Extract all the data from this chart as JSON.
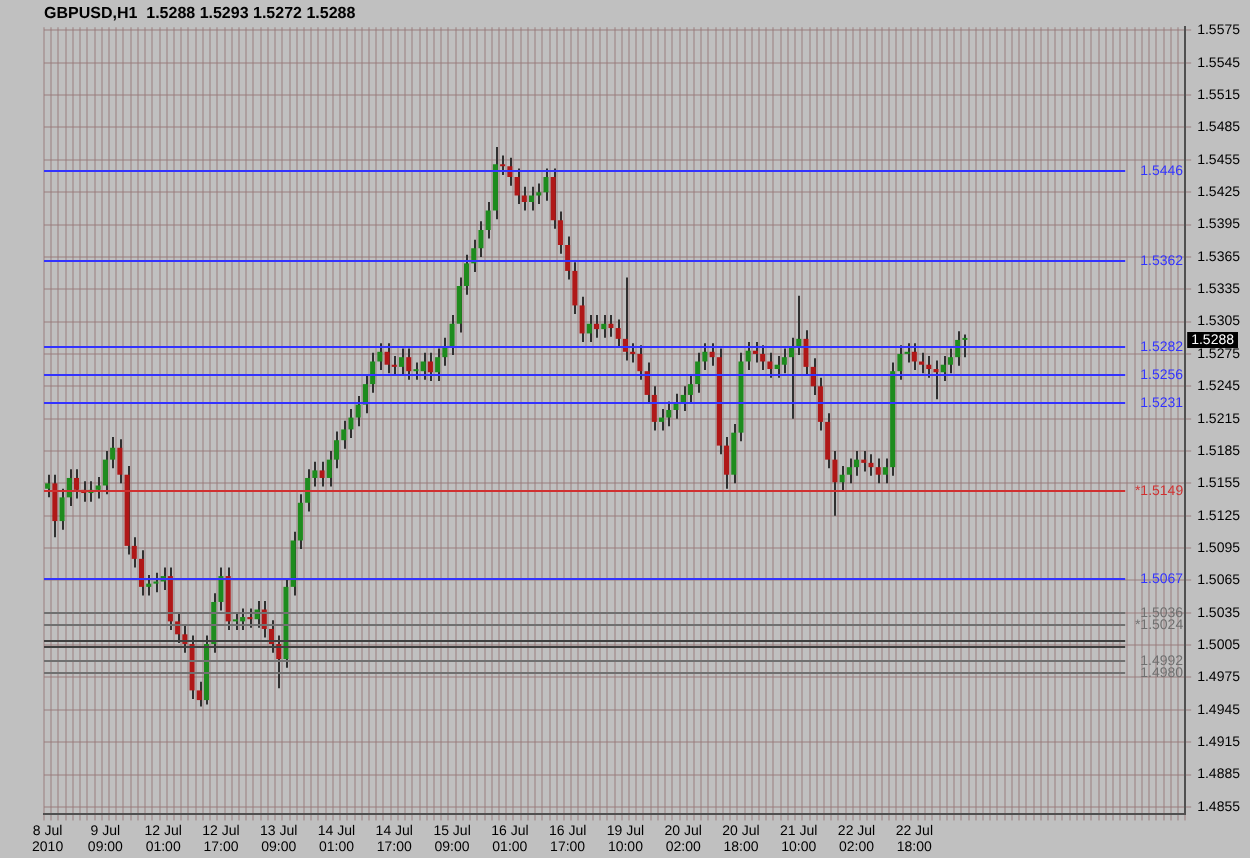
{
  "chart_data": {
    "type": "candlestick",
    "title": "GBPUSD,H1  1.5288 1.5293 1.5272 1.5288",
    "categories": [
      "8 Jul 2010",
      null,
      null,
      null,
      null,
      null,
      null,
      null,
      "9 Jul 09:00",
      null,
      null,
      null,
      null,
      null,
      null,
      null,
      "12 Jul 01:00",
      null,
      null,
      null,
      null,
      null,
      null,
      null,
      "12 Jul 17:00",
      null,
      null,
      null,
      null,
      null,
      null,
      null,
      "13 Jul 09:00",
      null,
      null,
      null,
      null,
      null,
      null,
      null,
      "14 Jul 01:00",
      null,
      null,
      null,
      null,
      null,
      null,
      null,
      "14 Jul 17:00",
      null,
      null,
      null,
      null,
      null,
      null,
      null,
      "15 Jul 09:00",
      null,
      null,
      null,
      null,
      null,
      null,
      null,
      "16 Jul 01:00",
      null,
      null,
      null,
      null,
      null,
      null,
      null,
      "16 Jul 17:00",
      null,
      null,
      null,
      null,
      null,
      null,
      null,
      "19 Jul 10:00",
      null,
      null,
      null,
      null,
      null,
      null,
      null,
      "20 Jul 02:00",
      null,
      null,
      null,
      null,
      null,
      null,
      null,
      "20 Jul 18:00",
      null,
      null,
      null,
      null,
      null,
      null,
      null,
      "21 Jul 10:00",
      null,
      null,
      null,
      null,
      null,
      null,
      null,
      "22 Jul 02:00",
      null,
      null,
      null,
      null,
      null,
      null,
      null,
      "22 Jul 18:00",
      null,
      null,
      null,
      null,
      null,
      null,
      null,
      null,
      null,
      null,
      null,
      null,
      null,
      null,
      null,
      null,
      null,
      null,
      null,
      null,
      null,
      null,
      null,
      null,
      null,
      null,
      null,
      null,
      null,
      null,
      null,
      null,
      null,
      null,
      null,
      null,
      null
    ],
    "ohlc": [
      [
        1.515,
        1.5163,
        1.5142,
        1.5155
      ],
      [
        1.5155,
        1.5163,
        1.5105,
        1.512
      ],
      [
        1.512,
        1.515,
        1.5112,
        1.5142
      ],
      [
        1.5142,
        1.5168,
        1.5134,
        1.516
      ],
      [
        1.516,
        1.5168,
        1.5141,
        1.5149
      ],
      [
        1.5149,
        1.5157,
        1.5138,
        1.5146
      ],
      [
        1.5146,
        1.5157,
        1.5138,
        1.5149
      ],
      [
        1.5149,
        1.5161,
        1.5141,
        1.5153
      ],
      [
        1.5153,
        1.5185,
        1.5145,
        1.5177
      ],
      [
        1.5177,
        1.5198,
        1.5169,
        1.5188
      ],
      [
        1.5188,
        1.5196,
        1.5155,
        1.5163
      ],
      [
        1.5163,
        1.5171,
        1.5089,
        1.5097
      ],
      [
        1.5097,
        1.5105,
        1.5077,
        1.5085
      ],
      [
        1.5085,
        1.5093,
        1.5051,
        1.5059
      ],
      [
        1.5059,
        1.507,
        1.5051,
        1.5062
      ],
      [
        1.5062,
        1.5072,
        1.5054,
        1.5064
      ],
      [
        1.5064,
        1.5077,
        1.5056,
        1.5069
      ],
      [
        1.5069,
        1.5077,
        1.5019,
        1.5027
      ],
      [
        1.5027,
        1.5035,
        1.5007,
        1.5015
      ],
      [
        1.5015,
        1.5023,
        1.4998,
        1.5006
      ],
      [
        1.5006,
        1.5014,
        1.4955,
        1.4963
      ],
      [
        1.4963,
        1.4971,
        1.4948,
        1.4954
      ],
      [
        1.4954,
        1.5014,
        1.495,
        1.5006
      ],
      [
        1.5006,
        1.5053,
        1.4998,
        1.5045
      ],
      [
        1.5045,
        1.5077,
        1.5037,
        1.5069
      ],
      [
        1.5069,
        1.5077,
        1.5019,
        1.5027
      ],
      [
        1.5027,
        1.5035,
        1.5019,
        1.5027
      ],
      [
        1.5027,
        1.5039,
        1.5019,
        1.5031
      ],
      [
        1.5031,
        1.5039,
        1.5021,
        1.5029
      ],
      [
        1.5029,
        1.5046,
        1.5021,
        1.5038
      ],
      [
        1.5038,
        1.5046,
        1.5012,
        1.502
      ],
      [
        1.502,
        1.5028,
        1.4998,
        1.5006
      ],
      [
        1.5006,
        1.5014,
        1.4965,
        1.4992
      ],
      [
        1.4992,
        1.5067,
        1.4984,
        1.5059
      ],
      [
        1.5059,
        1.511,
        1.5051,
        1.5102
      ],
      [
        1.5102,
        1.5145,
        1.5094,
        1.5137
      ],
      [
        1.5137,
        1.5168,
        1.5129,
        1.516
      ],
      [
        1.516,
        1.5175,
        1.5152,
        1.5167
      ],
      [
        1.5167,
        1.5175,
        1.5152,
        1.516
      ],
      [
        1.516,
        1.5185,
        1.5152,
        1.5177
      ],
      [
        1.5177,
        1.5203,
        1.5169,
        1.5195
      ],
      [
        1.5195,
        1.5213,
        1.5187,
        1.5205
      ],
      [
        1.5205,
        1.5224,
        1.5197,
        1.5216
      ],
      [
        1.5216,
        1.5236,
        1.5208,
        1.5228
      ],
      [
        1.5228,
        1.5255,
        1.522,
        1.5247
      ],
      [
        1.5247,
        1.5276,
        1.5239,
        1.5268
      ],
      [
        1.5268,
        1.5285,
        1.526,
        1.5277
      ],
      [
        1.5277,
        1.5285,
        1.5257,
        1.5265
      ],
      [
        1.5265,
        1.5273,
        1.5255,
        1.5263
      ],
      [
        1.5263,
        1.528,
        1.5255,
        1.5272
      ],
      [
        1.5272,
        1.528,
        1.5251,
        1.5259
      ],
      [
        1.5259,
        1.5267,
        1.5251,
        1.5259
      ],
      [
        1.5259,
        1.5276,
        1.5251,
        1.5268
      ],
      [
        1.5268,
        1.5276,
        1.525,
        1.5258
      ],
      [
        1.5258,
        1.528,
        1.525,
        1.5272
      ],
      [
        1.5272,
        1.529,
        1.5264,
        1.5282
      ],
      [
        1.5282,
        1.5311,
        1.5274,
        1.5303
      ],
      [
        1.5303,
        1.5346,
        1.5295,
        1.5338
      ],
      [
        1.5338,
        1.5367,
        1.533,
        1.5359
      ],
      [
        1.5359,
        1.5381,
        1.5351,
        1.5373
      ],
      [
        1.5373,
        1.5398,
        1.5365,
        1.539
      ],
      [
        1.539,
        1.5416,
        1.5382,
        1.5408
      ],
      [
        1.5408,
        1.5467,
        1.54,
        1.5451
      ],
      [
        1.5451,
        1.5459,
        1.5441,
        1.5449
      ],
      [
        1.5449,
        1.5457,
        1.5431,
        1.5439
      ],
      [
        1.5439,
        1.5447,
        1.5414,
        1.5422
      ],
      [
        1.5422,
        1.543,
        1.5408,
        1.5416
      ],
      [
        1.5416,
        1.543,
        1.5408,
        1.5422
      ],
      [
        1.5422,
        1.5433,
        1.5414,
        1.5425
      ],
      [
        1.5425,
        1.5447,
        1.5417,
        1.5439
      ],
      [
        1.5439,
        1.5447,
        1.5391,
        1.5399
      ],
      [
        1.5399,
        1.5407,
        1.5368,
        1.5376
      ],
      [
        1.5376,
        1.5384,
        1.5344,
        1.5352
      ],
      [
        1.5352,
        1.536,
        1.5312,
        1.532
      ],
      [
        1.532,
        1.5328,
        1.5286,
        1.5294
      ],
      [
        1.5294,
        1.5311,
        1.5286,
        1.5303
      ],
      [
        1.5303,
        1.5311,
        1.529,
        1.5298
      ],
      [
        1.5298,
        1.5311,
        1.529,
        1.5303
      ],
      [
        1.5303,
        1.5311,
        1.5291,
        1.5299
      ],
      [
        1.5299,
        1.5307,
        1.5281,
        1.5289
      ],
      [
        1.5289,
        1.5346,
        1.5269,
        1.5277
      ],
      [
        1.5277,
        1.5285,
        1.5267,
        1.5275
      ],
      [
        1.5275,
        1.5283,
        1.5251,
        1.5259
      ],
      [
        1.5259,
        1.5267,
        1.5229,
        1.5237
      ],
      [
        1.5237,
        1.5245,
        1.5204,
        1.5212
      ],
      [
        1.5212,
        1.5224,
        1.5204,
        1.5216
      ],
      [
        1.5216,
        1.5231,
        1.5208,
        1.5223
      ],
      [
        1.5223,
        1.5238,
        1.5215,
        1.523
      ],
      [
        1.523,
        1.5245,
        1.5222,
        1.5237
      ],
      [
        1.5237,
        1.5255,
        1.5229,
        1.5247
      ],
      [
        1.5247,
        1.5276,
        1.5239,
        1.5268
      ],
      [
        1.5268,
        1.5285,
        1.526,
        1.5277
      ],
      [
        1.5277,
        1.5285,
        1.5264,
        1.5272
      ],
      [
        1.5272,
        1.528,
        1.5182,
        1.519
      ],
      [
        1.519,
        1.5198,
        1.515,
        1.5163
      ],
      [
        1.5163,
        1.521,
        1.5155,
        1.5202
      ],
      [
        1.5202,
        1.5276,
        1.5194,
        1.5268
      ],
      [
        1.5268,
        1.5286,
        1.526,
        1.5278
      ],
      [
        1.5278,
        1.5286,
        1.5267,
        1.5275
      ],
      [
        1.5275,
        1.5283,
        1.526,
        1.5268
      ],
      [
        1.5268,
        1.5276,
        1.5253,
        1.5261
      ],
      [
        1.5261,
        1.5273,
        1.5253,
        1.5265
      ],
      [
        1.5265,
        1.528,
        1.5257,
        1.5272
      ],
      [
        1.5272,
        1.529,
        1.5215,
        1.5282
      ],
      [
        1.5282,
        1.5329,
        1.5274,
        1.5289
      ],
      [
        1.5289,
        1.5297,
        1.5255,
        1.5263
      ],
      [
        1.5263,
        1.5271,
        1.5237,
        1.5245
      ],
      [
        1.5245,
        1.5253,
        1.5204,
        1.5212
      ],
      [
        1.5212,
        1.522,
        1.5169,
        1.5177
      ],
      [
        1.5177,
        1.5185,
        1.5125,
        1.5156
      ],
      [
        1.5156,
        1.5171,
        1.5148,
        1.5163
      ],
      [
        1.5163,
        1.5178,
        1.5155,
        1.517
      ],
      [
        1.517,
        1.5185,
        1.5162,
        1.5177
      ],
      [
        1.5177,
        1.5185,
        1.5166,
        1.5174
      ],
      [
        1.5174,
        1.5182,
        1.5162,
        1.517
      ],
      [
        1.517,
        1.5178,
        1.5155,
        1.5163
      ],
      [
        1.5163,
        1.5178,
        1.5155,
        1.517
      ],
      [
        1.517,
        1.5267,
        1.5162,
        1.5259
      ],
      [
        1.5259,
        1.5283,
        1.5251,
        1.5275
      ],
      [
        1.5275,
        1.5285,
        1.5267,
        1.5277
      ],
      [
        1.5277,
        1.5285,
        1.526,
        1.5268
      ],
      [
        1.5268,
        1.5276,
        1.5257,
        1.5265
      ],
      [
        1.5265,
        1.5273,
        1.5253,
        1.5261
      ],
      [
        1.5261,
        1.5269,
        1.5233,
        1.5258
      ],
      [
        1.5258,
        1.5273,
        1.525,
        1.5265
      ],
      [
        1.5265,
        1.528,
        1.5257,
        1.5272
      ],
      [
        1.5272,
        1.5296,
        1.5264,
        1.5288
      ],
      [
        1.5288,
        1.5293,
        1.5272,
        1.5288
      ],
      null,
      null,
      null,
      null,
      null,
      null,
      null,
      null,
      null,
      null,
      null,
      null,
      null,
      null,
      null,
      null,
      null,
      null,
      null,
      null,
      null,
      null,
      null,
      null,
      null,
      null,
      null,
      null,
      null,
      null
    ],
    "ylim": [
      1.4848,
      1.5578
    ],
    "yticks": [
      1.4855,
      1.4885,
      1.4915,
      1.4945,
      1.4975,
      1.5005,
      1.5035,
      1.5065,
      1.5095,
      1.5125,
      1.5155,
      1.5185,
      1.5215,
      1.5245,
      1.5275,
      1.5305,
      1.5335,
      1.5365,
      1.5395,
      1.5425,
      1.5455,
      1.5485,
      1.5515,
      1.5545,
      1.5575
    ],
    "grid": true,
    "ref_lines": [
      {
        "axis": "y",
        "value": 1.5446,
        "label": "1.5446",
        "color": "#3333ff"
      },
      {
        "axis": "y",
        "value": 1.5362,
        "label": "1.5362",
        "color": "#3333ff"
      },
      {
        "axis": "y",
        "value": 1.5282,
        "label": "1.5282",
        "color": "#3333ff"
      },
      {
        "axis": "y",
        "value": 1.5256,
        "label": "1.5256",
        "color": "#3333ff"
      },
      {
        "axis": "y",
        "value": 1.5231,
        "label": "1.5231",
        "color": "#3333ff"
      },
      {
        "axis": "y",
        "value": 1.5149,
        "label": "*1.5149",
        "color": "#d03030"
      },
      {
        "axis": "y",
        "value": 1.5067,
        "label": "1.5067",
        "color": "#3333ff"
      },
      {
        "axis": "y",
        "value": 1.5036,
        "label": "1.5036",
        "color": "#707070"
      },
      {
        "axis": "y",
        "value": 1.5024,
        "label": "*1.5024",
        "color": "#707070"
      },
      {
        "axis": "y",
        "value": 1.501,
        "color": "#404040"
      },
      {
        "axis": "y",
        "value": 1.5005,
        "color": "#404040"
      },
      {
        "axis": "y",
        "value": 1.4992,
        "label": "1.4992",
        "color": "#707070"
      },
      {
        "axis": "y",
        "value": 1.498,
        "label": "1.4980",
        "color": "#707070"
      }
    ],
    "annotations": [
      {
        "text": "1.5288",
        "y": 1.5288
      }
    ]
  }
}
